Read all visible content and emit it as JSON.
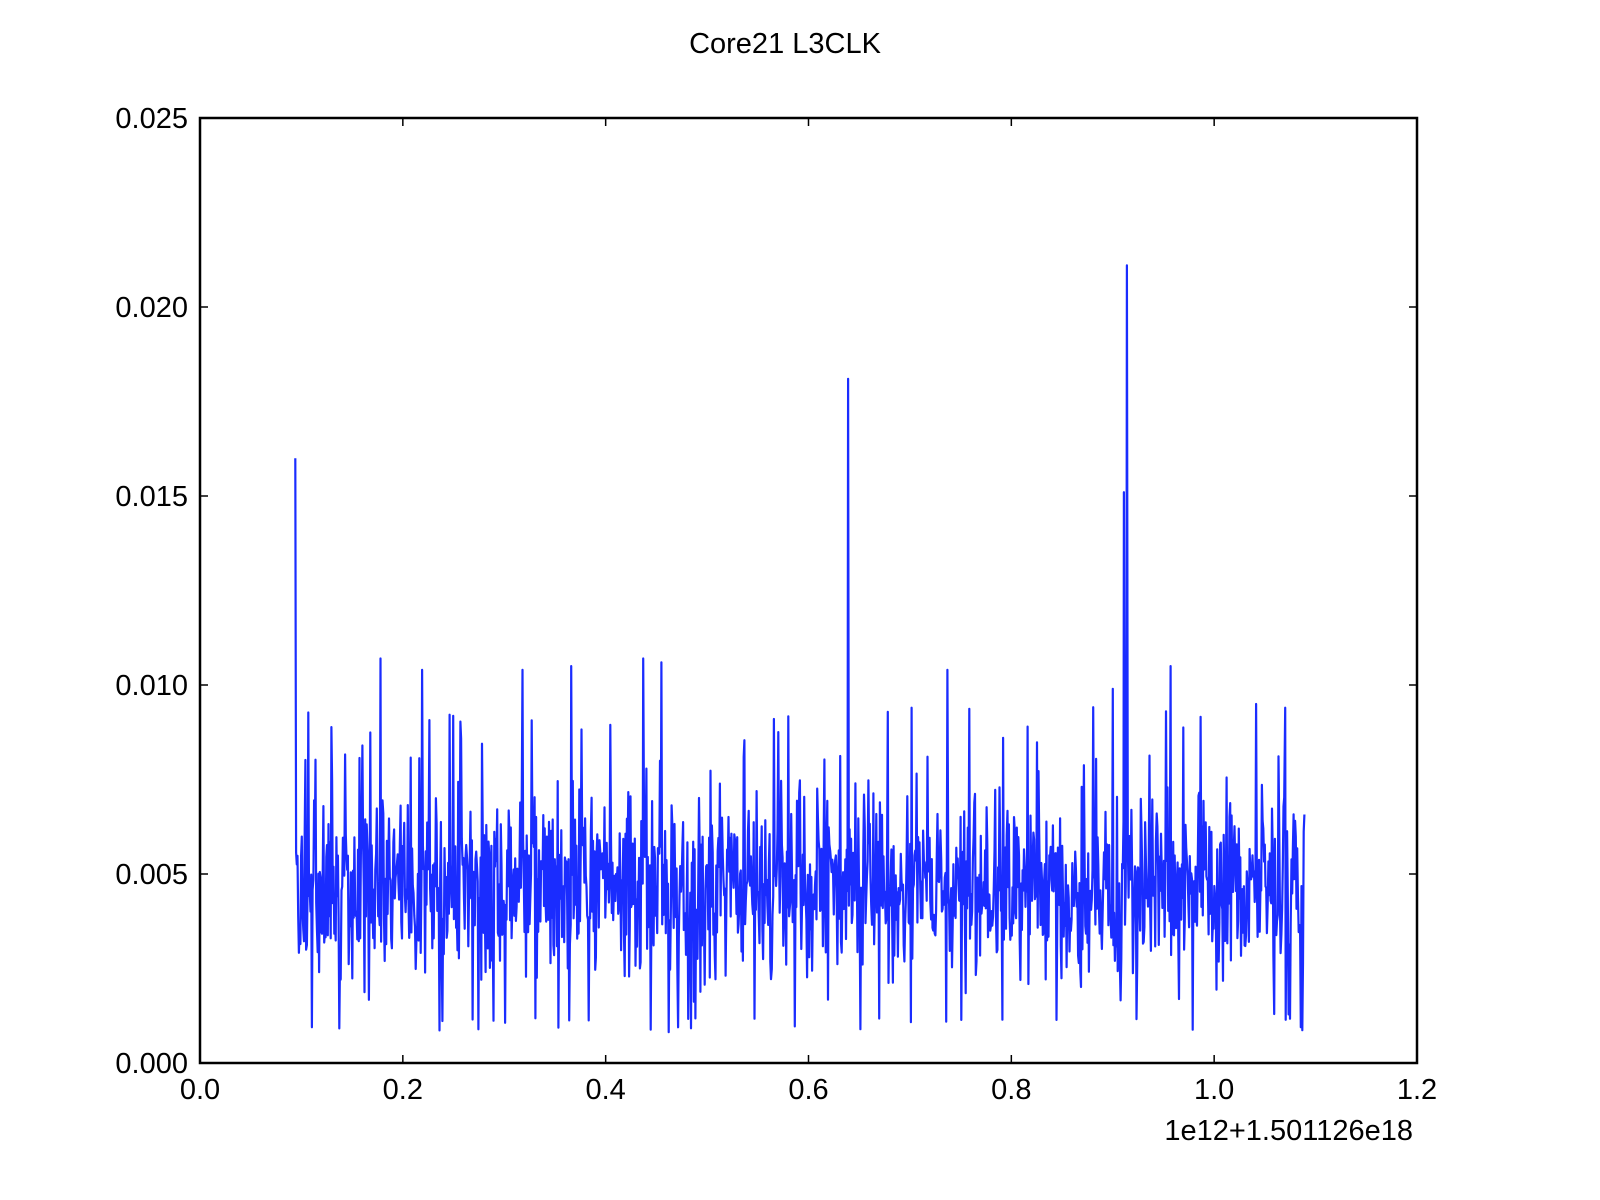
{
  "chart_data": {
    "type": "line",
    "title": "Core21 L3CLK",
    "xlabel": "",
    "ylabel": "",
    "x_offset_label": "1e12+1.501126e18",
    "xlim": [
      0.0,
      1.2
    ],
    "ylim": [
      0.0,
      0.025
    ],
    "x_ticks": [
      0.0,
      0.2,
      0.4,
      0.6,
      0.8,
      1.0,
      1.2
    ],
    "x_tick_labels": [
      "0.0",
      "0.2",
      "0.4",
      "0.6",
      "0.8",
      "1.0",
      "1.2"
    ],
    "y_ticks": [
      0.0,
      0.005,
      0.01,
      0.015,
      0.02,
      0.025
    ],
    "y_tick_labels": [
      "0.000",
      "0.005",
      "0.010",
      "0.015",
      "0.020",
      "0.025"
    ],
    "grid": false,
    "legend": "none",
    "series_color": "#1a2cff",
    "x_range": [
      0.094,
      1.089
    ],
    "value_band": [
      0.001,
      0.008
    ],
    "typical_value": 0.0043,
    "spikes": [
      {
        "x": 0.094,
        "y": 0.016
      },
      {
        "x": 0.178,
        "y": 0.0107
      },
      {
        "x": 0.219,
        "y": 0.0104
      },
      {
        "x": 0.318,
        "y": 0.0104
      },
      {
        "x": 0.366,
        "y": 0.0105
      },
      {
        "x": 0.437,
        "y": 0.0107
      },
      {
        "x": 0.455,
        "y": 0.0106
      },
      {
        "x": 0.639,
        "y": 0.0181
      },
      {
        "x": 0.737,
        "y": 0.0104
      },
      {
        "x": 0.9,
        "y": 0.0099
      },
      {
        "x": 0.911,
        "y": 0.0151
      },
      {
        "x": 0.914,
        "y": 0.0211
      },
      {
        "x": 0.957,
        "y": 0.0105
      },
      {
        "x": 1.07,
        "y": 0.0094
      }
    ]
  }
}
